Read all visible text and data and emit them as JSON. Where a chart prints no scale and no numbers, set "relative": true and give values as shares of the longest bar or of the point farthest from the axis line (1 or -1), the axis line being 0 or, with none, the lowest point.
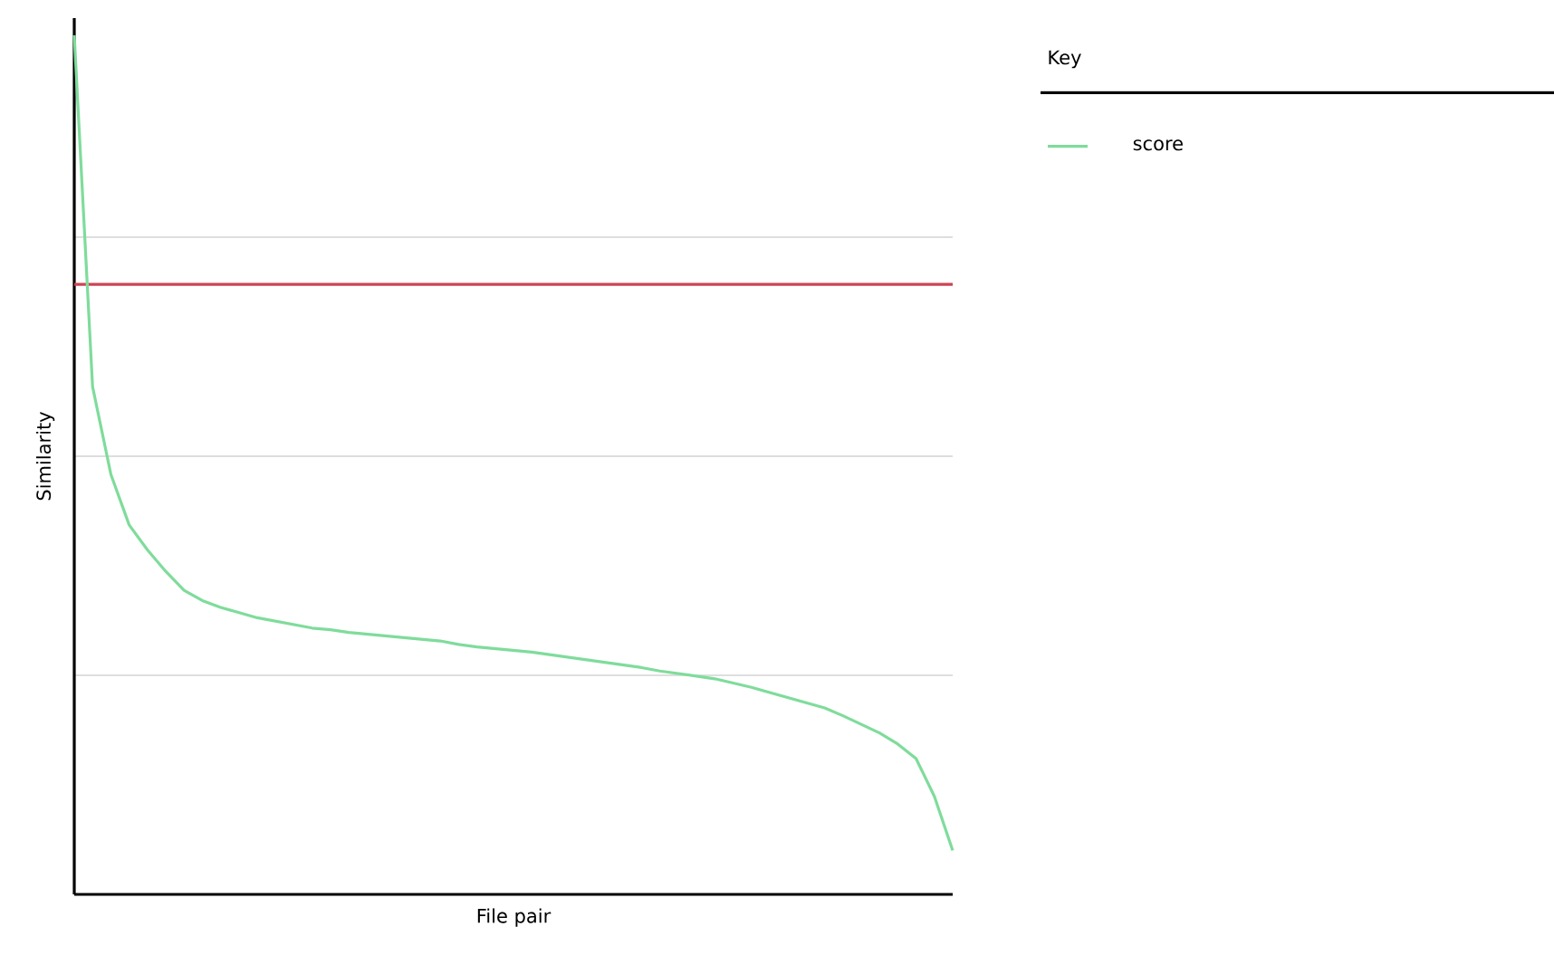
{
  "chart_data": {
    "type": "line",
    "relative": true,
    "xlabel": "File pair",
    "ylabel": "Similarity",
    "legend_title": "Key",
    "legend": "top right",
    "grid": "y",
    "tick_labels": false,
    "categories": [
      null,
      null,
      null,
      null,
      null,
      null,
      null,
      null,
      null,
      null,
      null,
      null,
      null,
      null,
      null,
      null,
      null,
      null,
      null,
      null,
      null,
      null,
      null,
      null,
      null,
      null,
      null,
      null,
      null,
      null,
      null,
      null,
      null,
      null,
      null,
      null,
      null,
      null,
      null,
      null,
      null,
      null,
      null,
      null,
      null,
      null,
      null,
      null,
      null
    ],
    "series": [
      {
        "name": "score",
        "color": "#7fdc9b",
        "values": [
          1.0,
          0.591,
          0.489,
          0.43,
          0.401,
          0.376,
          0.354,
          0.342,
          0.334,
          0.328,
          0.322,
          0.318,
          0.314,
          0.31,
          0.308,
          0.305,
          0.303,
          0.301,
          0.299,
          0.297,
          0.295,
          0.291,
          0.288,
          0.286,
          0.284,
          0.282,
          0.279,
          0.276,
          0.273,
          0.27,
          0.267,
          0.264,
          0.26,
          0.257,
          0.254,
          0.251,
          0.246,
          0.241,
          0.235,
          0.229,
          0.223,
          0.217,
          0.208,
          0.198,
          0.188,
          0.175,
          0.158,
          0.114,
          0.051
        ]
      }
    ],
    "ref_lines": [
      {
        "axis": "y",
        "value": 0.71,
        "color": "#cc4455"
      }
    ]
  }
}
